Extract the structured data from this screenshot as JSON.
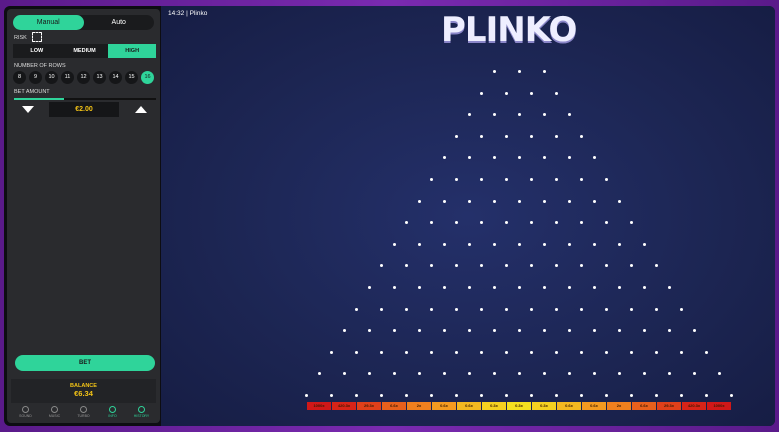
{
  "header": {
    "time": "14:32",
    "separator": "|",
    "game": "Plinko",
    "logo": "PLINKO"
  },
  "modes": [
    {
      "label": "Manual",
      "active": true
    },
    {
      "label": "Auto",
      "active": false
    }
  ],
  "risk": {
    "label": "RISK",
    "options": [
      "LOW",
      "MEDIUM",
      "HIGH"
    ],
    "selected": "HIGH"
  },
  "rows": {
    "label": "NUMBER OF ROWS",
    "options": [
      "8",
      "9",
      "10",
      "11",
      "12",
      "13",
      "14",
      "15",
      "16"
    ],
    "selected": "16"
  },
  "bet": {
    "label": "BET AMOUNT",
    "value": "€2.00",
    "slider_percent": 35,
    "button": "BET"
  },
  "balance": {
    "label": "BALANCE",
    "value": "€6.34"
  },
  "nav": [
    {
      "label": "SOUND",
      "icon": "sound-icon"
    },
    {
      "label": "MUSIC",
      "icon": "music-icon"
    },
    {
      "label": "TURBO",
      "icon": "turbo-icon"
    },
    {
      "label": "INFO",
      "icon": "info-icon",
      "active": true
    },
    {
      "label": "HISTORY",
      "icon": "history-icon",
      "active": true
    }
  ],
  "multipliers": [
    "1000x",
    "420.3x",
    "29.3x",
    "6.6x",
    "2x",
    "0.6x",
    "0.6x",
    "0.3x",
    "0.3x",
    "0.3x",
    "0.6x",
    "0.6x",
    "2x",
    "6.6x",
    "29.3x",
    "420.3x",
    "1000x"
  ],
  "colors": {
    "accent": "#2fd49a",
    "gold": "#f3c316",
    "bucket_high": "#d01818",
    "bucket_low": "#f4e020"
  }
}
